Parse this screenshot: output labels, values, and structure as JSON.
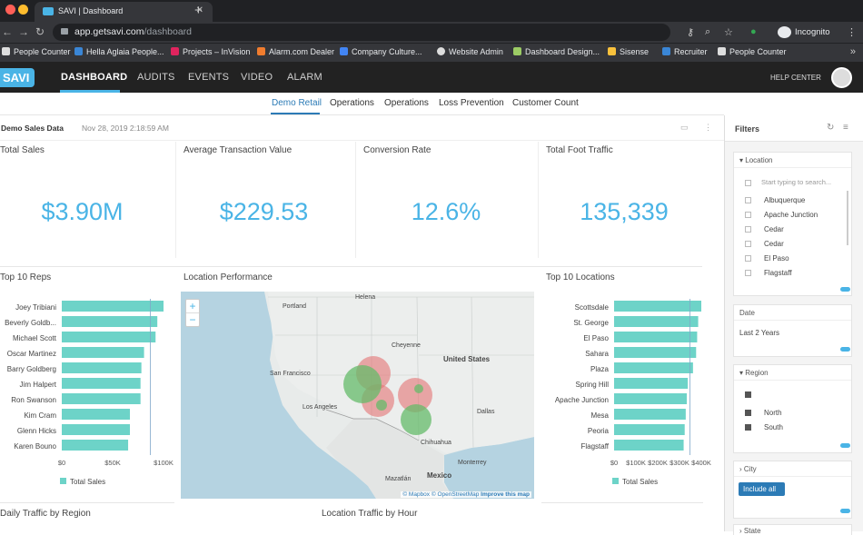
{
  "browser": {
    "tab_title": "SAVI | Dashboard",
    "url_host": "app.getsavi.com",
    "url_path": "/dashboard",
    "profile_label": "Incognito",
    "bookmarks": [
      "People Counter",
      "Hella Aglaia People...",
      "Projects – InVision",
      "Alarm.com Dealer",
      "Company Culture...",
      "Website Admin",
      "Dashboard Design...",
      "Sisense",
      "Recruiter",
      "People Counter"
    ]
  },
  "app": {
    "logo": "SAVI",
    "nav": [
      "DASHBOARD",
      "AUDITS",
      "EVENTS",
      "VIDEO",
      "ALARM"
    ],
    "help": "HELP CENTER"
  },
  "subtabs": [
    "Demo Retail",
    "Operations",
    "Operations",
    "Loss Prevention",
    "Customer Count"
  ],
  "dashboard": {
    "title": "Demo Sales Data",
    "timestamp": "Nov 28, 2019 2:18:59 AM",
    "kpis": [
      {
        "label": "Total Sales",
        "value": "$3.90M"
      },
      {
        "label": "Average Transaction Value",
        "value": "$229.53"
      },
      {
        "label": "Conversion Rate",
        "value": "12.6%"
      },
      {
        "label": "Total Foot Traffic",
        "value": "135,339"
      }
    ],
    "widgets": {
      "reps": "Top 10 Reps",
      "map": "Location Performance",
      "locations": "Top 10 Locations",
      "daily": "Daily Traffic by Region",
      "hourly": "Location Traffic by Hour"
    },
    "map_labels": [
      "Helena",
      "Portland",
      "Cheyenne",
      "San Francisco",
      "Los Angeles",
      "United States",
      "Dallas",
      "Chihuahua",
      "Mexico",
      "Monterrey",
      "Mazatlán"
    ],
    "map_attrib": {
      "a": "© Mapbox",
      "b": "© OpenStreetMap",
      "c": "Improve this map"
    }
  },
  "chart_data": [
    {
      "type": "bar",
      "orientation": "horizontal",
      "title": "Top 10 Reps",
      "categories": [
        "Joey Tribiani",
        "Beverly Goldb...",
        "Michael Scott",
        "Oscar Martinez",
        "Barry Goldberg",
        "Jim Halpert",
        "Ron Swanson",
        "Kim Cram",
        "Glenn Hicks",
        "Karen Bouno"
      ],
      "values": [
        115000,
        108000,
        106000,
        93000,
        90000,
        89000,
        89000,
        77000,
        77000,
        75000
      ],
      "xticks": [
        "$0",
        "$50K",
        "$100K"
      ],
      "xlim": [
        0,
        115000
      ],
      "legend": "Total Sales",
      "color": "#6dd3c8"
    },
    {
      "type": "bar",
      "orientation": "horizontal",
      "title": "Top 10 Locations",
      "categories": [
        "Scottsdale",
        "St. George",
        "El Paso",
        "Sahara",
        "Plaza",
        "Spring Hill",
        "Apache Junction",
        "Mesa",
        "Peoria",
        "Flagstaff"
      ],
      "values": [
        420000,
        405000,
        400000,
        395000,
        380000,
        355000,
        350000,
        345000,
        340000,
        335000
      ],
      "xticks": [
        "$0",
        "$100K",
        "$200K",
        "$300K",
        "$400K"
      ],
      "xlim": [
        0,
        420000
      ],
      "legend": "Total Sales",
      "color": "#6dd3c8"
    }
  ],
  "filters": {
    "title": "Filters",
    "location": {
      "title": "Location",
      "placeholder": "Start typing to search...",
      "items": [
        "Albuquerque",
        "Apache Junction",
        "Cedar",
        "Cedar",
        "El Paso",
        "Flagstaff"
      ]
    },
    "date": {
      "title": "Date",
      "value": "Last 2 Years"
    },
    "region": {
      "title": "Region",
      "items": [
        "North",
        "South"
      ]
    },
    "city": {
      "title": "City",
      "button": "Include all"
    },
    "state": {
      "title": "State"
    }
  }
}
